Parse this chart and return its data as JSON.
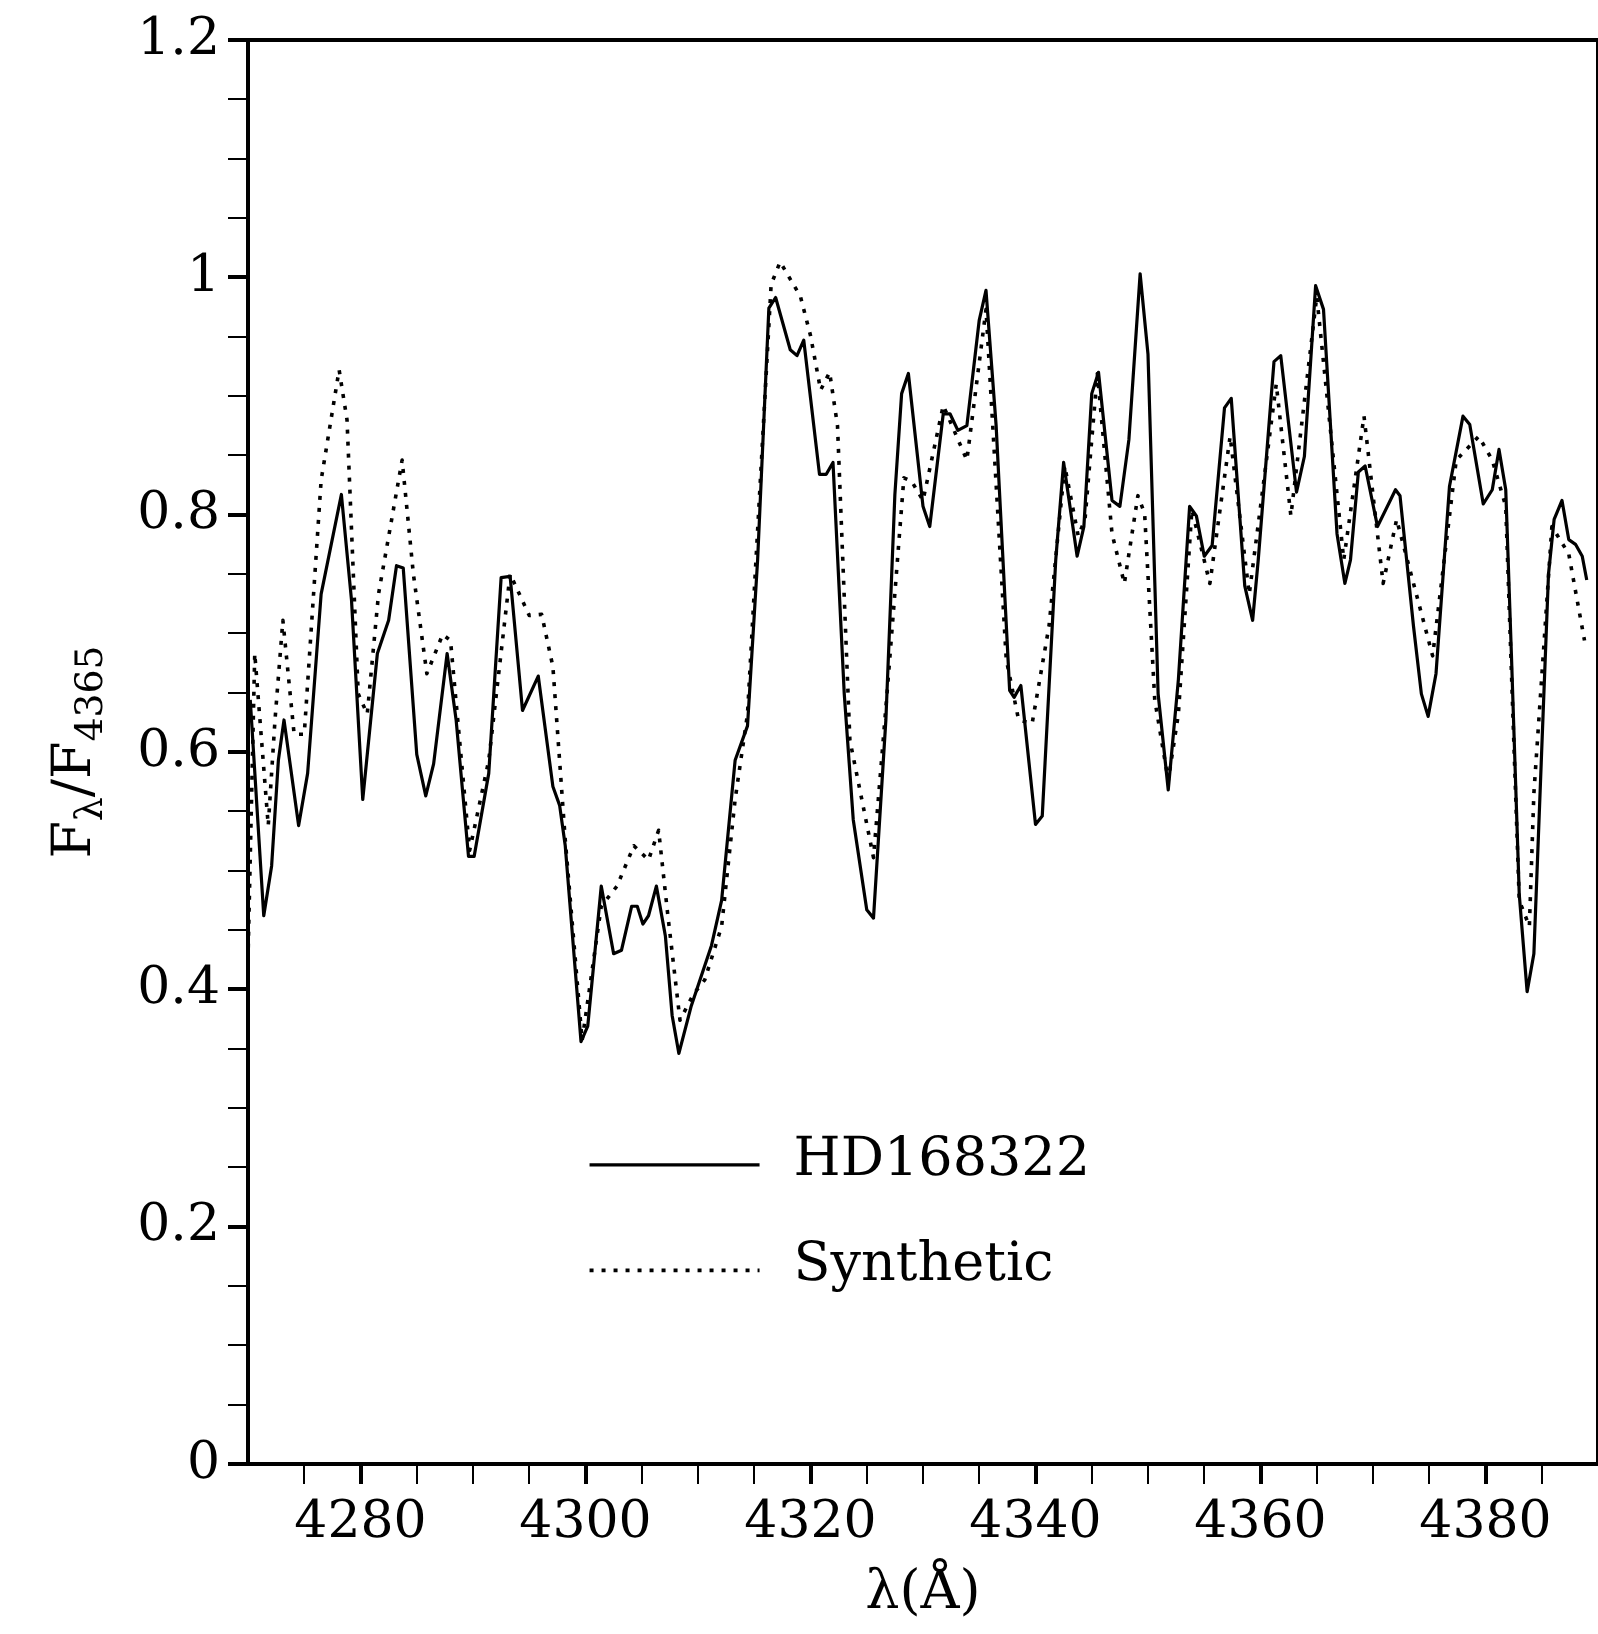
{
  "chart_data": {
    "type": "line",
    "xlabel": "λ(Å)",
    "ylabel": "F$_{λ}$/F$_{4365}$",
    "xlim": [
      4270,
      4390
    ],
    "ylim": [
      0,
      1.2
    ],
    "xticks": [
      {
        "value": 4275,
        "label": null
      },
      4280,
      {
        "value": 4285,
        "label": null
      },
      {
        "value": 4290,
        "label": null
      },
      {
        "value": 4295,
        "label": null
      },
      4300,
      {
        "value": 4305,
        "label": null
      },
      {
        "value": 4310,
        "label": null
      },
      {
        "value": 4315,
        "label": null
      },
      4320,
      {
        "value": 4325,
        "label": null
      },
      {
        "value": 4330,
        "label": null
      },
      {
        "value": 4335,
        "label": null
      },
      4340,
      {
        "value": 4345,
        "label": null
      },
      {
        "value": 4350,
        "label": null
      },
      {
        "value": 4355,
        "label": null
      },
      4360,
      {
        "value": 4365,
        "label": null
      },
      {
        "value": 4370,
        "label": null
      },
      {
        "value": 4375,
        "label": null
      },
      4380,
      {
        "value": 4385,
        "label": null
      }
    ],
    "yticks": [
      0,
      {
        "value": 0.05,
        "label": null
      },
      {
        "value": 0.1,
        "label": null
      },
      {
        "value": 0.15,
        "label": null
      },
      0.2,
      {
        "value": 0.25,
        "label": null
      },
      {
        "value": 0.3,
        "label": null
      },
      {
        "value": 0.35,
        "label": null
      },
      0.4,
      {
        "value": 0.45,
        "label": null
      },
      {
        "value": 0.5,
        "label": null
      },
      {
        "value": 0.55,
        "label": null
      },
      0.6,
      {
        "value": 0.65,
        "label": null
      },
      {
        "value": 0.7,
        "label": null
      },
      {
        "value": 0.75,
        "label": null
      },
      0.8,
      {
        "value": 0.85,
        "label": null
      },
      {
        "value": 0.9,
        "label": null
      },
      {
        "value": 0.95,
        "label": null
      },
      1,
      {
        "value": 1.05,
        "label": null
      },
      {
        "value": 1.1,
        "label": null
      },
      {
        "value": 1.15,
        "label": null
      },
      1.2
    ],
    "grid": false,
    "legend": "bottom",
    "marker": "none",
    "series": [
      {
        "name": "HD168322",
        "color": "#000000",
        "line_style": "solid",
        "x": [
          4270.2,
          4271.4,
          4272.1,
          4272.7,
          4273.2,
          4274.5,
          4275.3,
          4276.5,
          4278.3,
          4279.2,
          4280.2,
          4281.5,
          4282.5,
          4283.2,
          4283.8,
          4285.0,
          4285.8,
          4286.5,
          4287.7,
          4288.5,
          4289.6,
          4290.1,
          4291.4,
          4292.5,
          4293.3,
          4294.4,
          4295.8,
          4297.1,
          4297.7,
          4298.2,
          4299.6,
          4300.2,
          4301.4,
          4302.5,
          4303.2,
          4304.1,
          4304.6,
          4305.1,
          4305.6,
          4306.3,
          4307.1,
          4307.7,
          4308.3,
          4309.4,
          4311.2,
          4312.1,
          4313.3,
          4314.4,
          4315.3,
          4316.3,
          4316.9,
          4318.2,
          4318.8,
          4319.4,
          4320.8,
          4321.4,
          4322.0,
          4323.0,
          4323.8,
          4325.0,
          4325.6,
          4326.7,
          4327.5,
          4328.1,
          4328.7,
          4330.0,
          4330.6,
          4331.8,
          4332.4,
          4333.1,
          4333.9,
          4335.0,
          4335.6,
          4336.5,
          4337.7,
          4338.1,
          4338.7,
          4340.0,
          4340.6,
          4341.8,
          4342.5,
          4343.7,
          4344.3,
          4345.0,
          4345.6,
          4346.8,
          4347.5,
          4348.3,
          4349.3,
          4350.0,
          4350.9,
          4351.8,
          4352.7,
          4353.7,
          4354.3,
          4355.0,
          4355.7,
          4356.8,
          4357.4,
          4358.6,
          4359.3,
          4359.8,
          4361.2,
          4361.8,
          4363.2,
          4363.9,
          4364.9,
          4365.6,
          4366.8,
          4367.5,
          4368.0,
          4368.7,
          4369.3,
          4370.4,
          4372.0,
          4372.4,
          4373.6,
          4374.3,
          4374.9,
          4375.6,
          4376.8,
          4378.0,
          4378.6,
          4379.8,
          4380.6,
          4381.2,
          4381.8,
          4382.3,
          4383.0,
          4383.7,
          4384.3,
          4385.6,
          4386.1,
          4386.8,
          4387.4,
          4388.0,
          4388.6,
          4389.0
        ],
        "values": [
          0.644,
          0.462,
          0.504,
          0.593,
          0.627,
          0.538,
          0.582,
          0.733,
          0.817,
          0.728,
          0.56,
          0.683,
          0.711,
          0.757,
          0.755,
          0.598,
          0.563,
          0.59,
          0.683,
          0.627,
          0.512,
          0.512,
          0.582,
          0.747,
          0.748,
          0.635,
          0.664,
          0.571,
          0.555,
          0.521,
          0.356,
          0.369,
          0.487,
          0.43,
          0.433,
          0.47,
          0.47,
          0.455,
          0.462,
          0.487,
          0.445,
          0.378,
          0.346,
          0.386,
          0.437,
          0.475,
          0.593,
          0.622,
          0.762,
          0.974,
          0.983,
          0.939,
          0.934,
          0.947,
          0.834,
          0.834,
          0.844,
          0.649,
          0.543,
          0.467,
          0.46,
          0.627,
          0.817,
          0.902,
          0.919,
          0.807,
          0.79,
          0.885,
          0.885,
          0.871,
          0.875,
          0.964,
          0.989,
          0.875,
          0.652,
          0.646,
          0.656,
          0.539,
          0.546,
          0.762,
          0.844,
          0.765,
          0.79,
          0.902,
          0.92,
          0.812,
          0.807,
          0.863,
          1.003,
          0.935,
          0.649,
          0.568,
          0.661,
          0.807,
          0.799,
          0.765,
          0.774,
          0.89,
          0.898,
          0.74,
          0.711,
          0.762,
          0.929,
          0.934,
          0.819,
          0.849,
          0.993,
          0.973,
          0.784,
          0.742,
          0.762,
          0.836,
          0.841,
          0.79,
          0.821,
          0.816,
          0.706,
          0.649,
          0.63,
          0.666,
          0.824,
          0.883,
          0.876,
          0.809,
          0.821,
          0.855,
          0.821,
          0.683,
          0.48,
          0.398,
          0.43,
          0.75,
          0.796,
          0.812,
          0.779,
          0.775,
          0.765,
          0.745
        ]
      },
      {
        "name": "Synthetic",
        "color": "#000000",
        "line_style": "dotted",
        "x": [
          4270.0,
          4270.6,
          4271.8,
          4272.4,
          4273.1,
          4274.1,
          4275.0,
          4276.5,
          4278.1,
          4278.8,
          4279.8,
          4280.6,
          4281.6,
          4283.7,
          4284.7,
          4285.9,
          4287.3,
          4288.0,
          4289.7,
          4291.4,
          4293.3,
          4295.0,
          4296.1,
          4297.1,
          4298.2,
          4299.7,
          4301.4,
          4302.8,
          4304.3,
          4305.6,
          4306.5,
          4307.3,
          4308.4,
          4309.6,
          4310.6,
          4312.1,
          4313.3,
          4314.4,
          4316.5,
          4317.3,
          4319.1,
          4320.0,
          4320.9,
          4321.7,
          4322.4,
          4323.5,
          4325.6,
          4326.8,
          4328.3,
          4329.0,
          4330.0,
          4331.8,
          4333.9,
          4335.6,
          4337.4,
          4338.5,
          4339.7,
          4341.2,
          4342.6,
          4343.8,
          4344.4,
          4345.5,
          4346.8,
          4347.9,
          4349.1,
          4349.7,
          4350.6,
          4351.8,
          4352.7,
          4353.9,
          4355.5,
          4357.3,
          4359.0,
          4361.4,
          4362.7,
          4365.0,
          4367.4,
          4369.2,
          4370.9,
          4372.1,
          4375.3,
          4377.4,
          4379.4,
          4380.6,
          4381.8,
          4383.0,
          4383.9,
          4384.3,
          4385.9,
          4387.4,
          4388.8
        ],
        "values": [
          0.425,
          0.683,
          0.538,
          0.627,
          0.711,
          0.615,
          0.615,
          0.829,
          0.922,
          0.88,
          0.649,
          0.632,
          0.733,
          0.846,
          0.75,
          0.666,
          0.699,
          0.694,
          0.517,
          0.593,
          0.75,
          0.715,
          0.716,
          0.672,
          0.526,
          0.357,
          0.47,
          0.487,
          0.521,
          0.509,
          0.534,
          0.464,
          0.374,
          0.396,
          0.408,
          0.453,
          0.56,
          0.632,
          0.994,
          1.013,
          0.984,
          0.951,
          0.905,
          0.92,
          0.875,
          0.61,
          0.511,
          0.649,
          0.831,
          0.828,
          0.812,
          0.892,
          0.846,
          0.973,
          0.678,
          0.627,
          0.624,
          0.706,
          0.841,
          0.782,
          0.796,
          0.919,
          0.784,
          0.742,
          0.816,
          0.801,
          0.644,
          0.576,
          0.632,
          0.804,
          0.742,
          0.866,
          0.733,
          0.91,
          0.799,
          0.984,
          0.762,
          0.883,
          0.742,
          0.796,
          0.681,
          0.846,
          0.866,
          0.846,
          0.807,
          0.475,
          0.453,
          0.565,
          0.79,
          0.767,
          0.694
        ]
      }
    ]
  }
}
